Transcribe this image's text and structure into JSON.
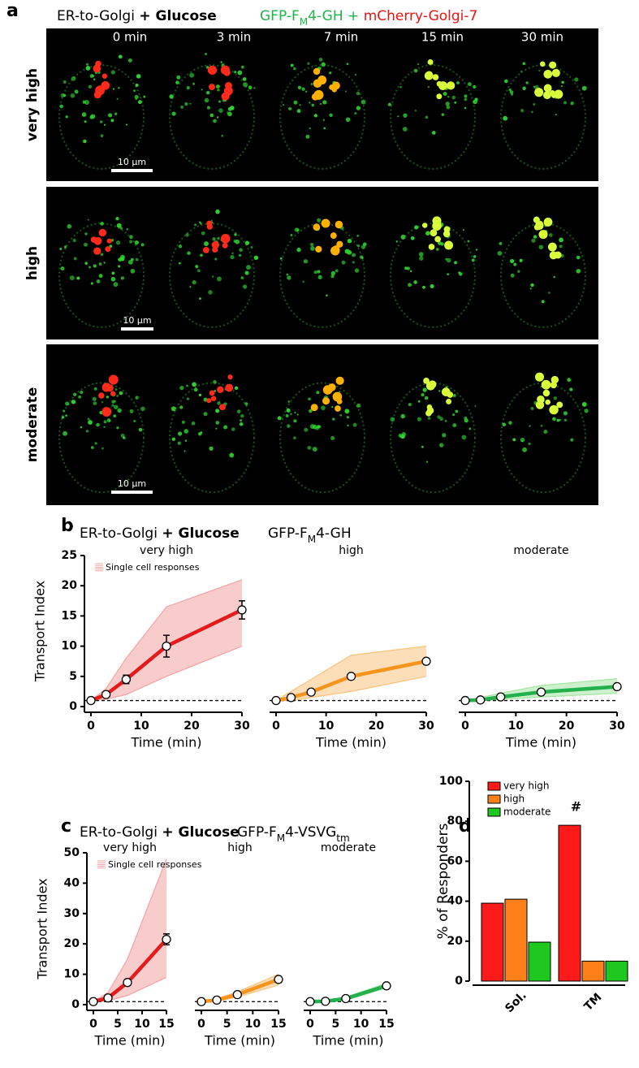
{
  "panel_a": {
    "label": "a",
    "title": {
      "prefix": "ER-to-Golgi",
      "bold": "+ Glucose"
    },
    "construct": [
      "GFP-F",
      "M",
      "4-GH + ",
      "mCherry-Golgi-7"
    ],
    "times": [
      "0 min",
      "3 min",
      "7 min",
      "15 min",
      "30 min"
    ],
    "rows": [
      {
        "label": "very high",
        "scale_bar": "10 µm"
      },
      {
        "label": "high",
        "scale_bar": "10 µm"
      },
      {
        "label": "moderate",
        "scale_bar": "10 µm"
      }
    ]
  },
  "panel_b": {
    "label": "b",
    "title": {
      "prefix": "ER-to-Golgi",
      "bold": "+ Glucose"
    },
    "construct": [
      "GFP-F",
      "M",
      "4-GH"
    ]
  },
  "panel_c": {
    "label": "c",
    "title": {
      "prefix": "ER-to-Golgi",
      "bold": "+ Glucose"
    },
    "construct": [
      "GFP-F",
      "M",
      "4-VSVG",
      "tm"
    ]
  },
  "panel_d": {
    "label": "d"
  },
  "chart_data": [
    {
      "type": "line",
      "title": "very high",
      "x": [
        0,
        3,
        7,
        15,
        30
      ],
      "xlim": [
        0,
        30
      ],
      "xticks": [
        0,
        10,
        20,
        30
      ],
      "ylim": [
        0,
        25
      ],
      "yticks": [
        0,
        5,
        10,
        15,
        20,
        25
      ],
      "ylabel": "Transport  Index",
      "xlabel": "Time (min)",
      "reference_line": 1,
      "series": [
        {
          "name": "Single cell responses",
          "color": "#f4a3a3",
          "low": [
            1,
            1.2,
            2,
            5,
            10
          ],
          "high": [
            1,
            3,
            8,
            16.5,
            21
          ]
        },
        {
          "color": "#e41a1c",
          "values": [
            1,
            2,
            4.5,
            10,
            16
          ],
          "errors": [
            0,
            0.3,
            0.7,
            1.8,
            1.5
          ]
        }
      ]
    },
    {
      "type": "line",
      "title": "high",
      "x": [
        0,
        3,
        7,
        15,
        30
      ],
      "xlim": [
        0,
        30
      ],
      "xticks": [
        0,
        10,
        20,
        30
      ],
      "ylim": [
        0,
        25
      ],
      "xlabel": "Time (min)",
      "reference_line": 1,
      "series": [
        {
          "color": "#f9c27e",
          "low": [
            1,
            1,
            1.5,
            2.5,
            5
          ],
          "high": [
            1,
            2.5,
            4.5,
            8.5,
            10
          ]
        },
        {
          "color": "#f7941d",
          "values": [
            1,
            1.5,
            2.4,
            5,
            7.5
          ]
        }
      ]
    },
    {
      "type": "line",
      "title": "moderate",
      "x": [
        0,
        3,
        7,
        15,
        30
      ],
      "xlim": [
        0,
        30
      ],
      "xticks": [
        0,
        10,
        20,
        30
      ],
      "ylim": [
        0,
        25
      ],
      "xlabel": "Time (min)",
      "reference_line": 1,
      "series": [
        {
          "color": "#a3e6a3",
          "low": [
            1,
            1,
            1.2,
            1.6,
            2.2
          ],
          "high": [
            1,
            1.5,
            2.2,
            3.5,
            4.6
          ]
        },
        {
          "color": "#22b14c",
          "values": [
            1,
            1.1,
            1.6,
            2.4,
            3.3
          ]
        }
      ]
    },
    {
      "type": "line",
      "title": "very high",
      "x": [
        0,
        3,
        7,
        15
      ],
      "xlim": [
        0,
        15
      ],
      "xticks": [
        0,
        5,
        10,
        15
      ],
      "ylim": [
        0,
        50
      ],
      "yticks": [
        0,
        10,
        20,
        30,
        40,
        50
      ],
      "ylabel": "Transport  Index",
      "xlabel": "Time (min)",
      "reference_line": 1,
      "series": [
        {
          "name": "Single cell responses",
          "color": "#f4a3a3",
          "low": [
            1,
            1.3,
            3,
            9
          ],
          "high": [
            1,
            4,
            15,
            48
          ]
        },
        {
          "color": "#e41a1c",
          "values": [
            1,
            2.2,
            7.3,
            21.5
          ],
          "errors": [
            0,
            0.3,
            0.5,
            1.8
          ]
        }
      ]
    },
    {
      "type": "line",
      "title": "high",
      "x": [
        0,
        3,
        7,
        15
      ],
      "xlim": [
        0,
        15
      ],
      "xticks": [
        0,
        5,
        10,
        15
      ],
      "ylim": [
        0,
        50
      ],
      "xlabel": "Time (min)",
      "reference_line": 1,
      "series": [
        {
          "color": "#f9c27e",
          "low": [
            1,
            1.2,
            2.5,
            6.5
          ],
          "high": [
            1,
            2,
            4.2,
            10
          ]
        },
        {
          "color": "#f7941d",
          "values": [
            1,
            1.5,
            3.3,
            8.3
          ]
        }
      ]
    },
    {
      "type": "line",
      "title": "moderate",
      "x": [
        0,
        3,
        7,
        15
      ],
      "xlim": [
        0,
        15
      ],
      "xticks": [
        0,
        5,
        10,
        15
      ],
      "ylim": [
        0,
        50
      ],
      "xlabel": "Time (min)",
      "reference_line": 1,
      "series": [
        {
          "color": "#a3e6a3",
          "low": [
            1,
            1,
            1.5,
            5.5
          ],
          "high": [
            1,
            1.3,
            2.5,
            7
          ]
        },
        {
          "color": "#22b14c",
          "values": [
            1,
            1.1,
            2,
            6.2
          ]
        }
      ]
    },
    {
      "type": "bar",
      "categories": [
        "Sol.",
        "TM"
      ],
      "ylim": [
        0,
        100
      ],
      "yticks": [
        0,
        20,
        40,
        60,
        80,
        100
      ],
      "ylabel": "% of Responders",
      "legend": "upper left",
      "series": [
        {
          "name": "very high",
          "color": "#ff1a1a",
          "values": [
            39,
            78
          ]
        },
        {
          "name": "high",
          "color": "#ff7f1a",
          "values": [
            41,
            10
          ]
        },
        {
          "name": "moderate",
          "color": "#1ec81e",
          "values": [
            19.5,
            10
          ]
        }
      ],
      "annotations": [
        {
          "text": "#",
          "category": 1,
          "series": 0
        }
      ]
    }
  ]
}
